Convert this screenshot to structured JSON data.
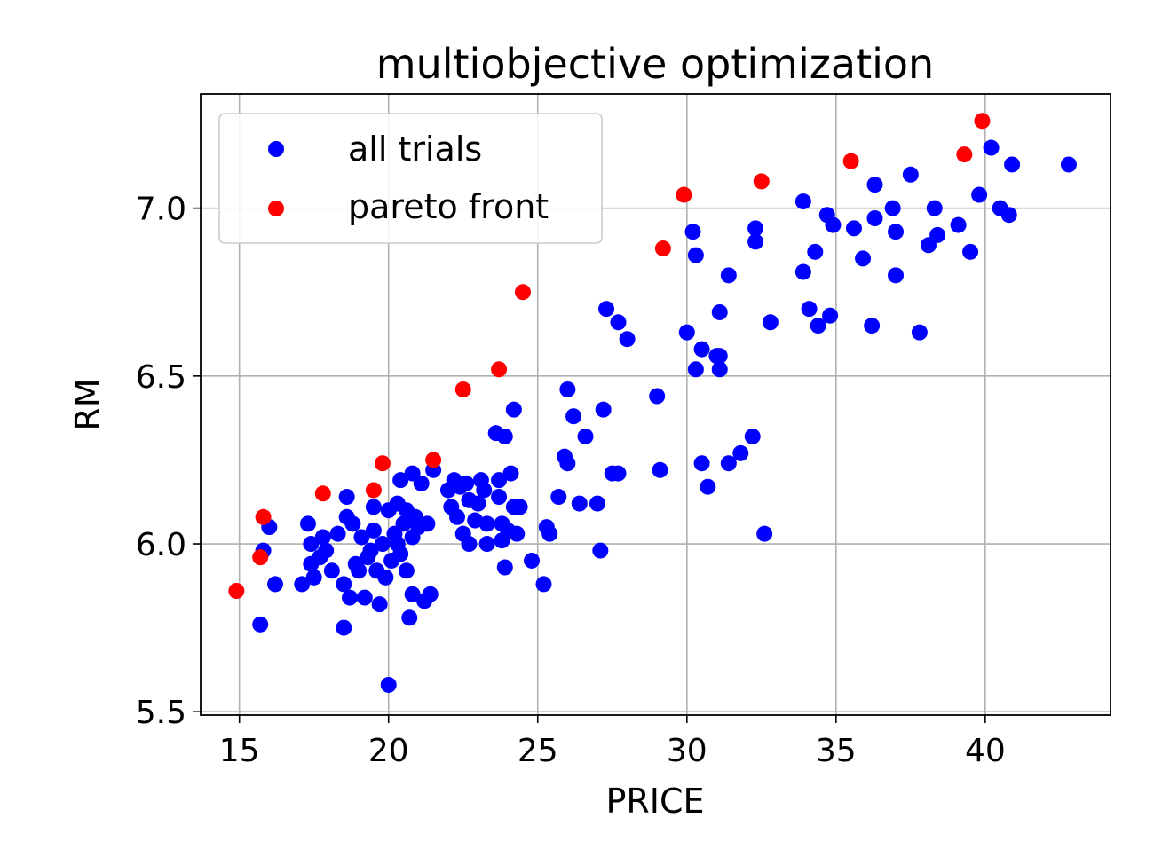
{
  "chart_data": {
    "type": "scatter",
    "title": "multiobjective optimization",
    "xlabel": "PRICE",
    "ylabel": "RM",
    "xlim": [
      13.7,
      44.2
    ],
    "ylim": [
      5.49,
      7.34
    ],
    "xticks": [
      15,
      20,
      25,
      30,
      35,
      40
    ],
    "yticks": [
      5.5,
      6.0,
      6.5,
      7.0
    ],
    "xtick_labels": [
      "15",
      "20",
      "25",
      "30",
      "35",
      "40"
    ],
    "ytick_labels": [
      "5.5",
      "6.0",
      "6.5",
      "7.0"
    ],
    "grid": true,
    "legend": {
      "placement": "top-left"
    },
    "series": [
      {
        "name": "all trials",
        "color": "#0000ff",
        "points": [
          [
            15.7,
            5.76
          ],
          [
            16.0,
            6.05
          ],
          [
            16.2,
            5.88
          ],
          [
            15.8,
            5.98
          ],
          [
            17.1,
            5.88
          ],
          [
            17.3,
            6.06
          ],
          [
            17.4,
            6.0
          ],
          [
            17.4,
            5.94
          ],
          [
            17.5,
            5.9
          ],
          [
            17.7,
            5.96
          ],
          [
            17.8,
            6.02
          ],
          [
            17.9,
            5.98
          ],
          [
            18.1,
            5.92
          ],
          [
            18.3,
            6.03
          ],
          [
            18.5,
            5.88
          ],
          [
            18.5,
            5.75
          ],
          [
            18.6,
            6.14
          ],
          [
            18.6,
            6.08
          ],
          [
            18.7,
            5.84
          ],
          [
            18.8,
            6.06
          ],
          [
            18.9,
            5.94
          ],
          [
            19.0,
            5.92
          ],
          [
            19.1,
            6.02
          ],
          [
            19.2,
            5.84
          ],
          [
            19.3,
            5.96
          ],
          [
            19.4,
            5.98
          ],
          [
            19.5,
            6.04
          ],
          [
            19.5,
            6.11
          ],
          [
            19.6,
            5.92
          ],
          [
            19.7,
            5.82
          ],
          [
            19.8,
            6.0
          ],
          [
            19.9,
            5.9
          ],
          [
            20.0,
            6.1
          ],
          [
            20.0,
            5.58
          ],
          [
            20.1,
            5.95
          ],
          [
            20.2,
            6.03
          ],
          [
            20.3,
            6.0
          ],
          [
            20.3,
            6.12
          ],
          [
            20.4,
            6.19
          ],
          [
            20.4,
            5.97
          ],
          [
            20.5,
            6.06
          ],
          [
            20.6,
            6.1
          ],
          [
            20.6,
            5.92
          ],
          [
            20.7,
            5.78
          ],
          [
            20.8,
            6.02
          ],
          [
            20.8,
            6.21
          ],
          [
            20.8,
            5.85
          ],
          [
            20.9,
            6.08
          ],
          [
            21.0,
            6.05
          ],
          [
            21.1,
            6.18
          ],
          [
            21.2,
            5.83
          ],
          [
            21.3,
            6.06
          ],
          [
            21.4,
            5.85
          ],
          [
            21.5,
            6.22
          ],
          [
            22.0,
            6.16
          ],
          [
            22.1,
            6.11
          ],
          [
            22.2,
            6.19
          ],
          [
            22.3,
            6.08
          ],
          [
            22.4,
            6.17
          ],
          [
            22.5,
            6.03
          ],
          [
            22.6,
            6.18
          ],
          [
            22.7,
            6.13
          ],
          [
            22.7,
            6.0
          ],
          [
            22.9,
            6.07
          ],
          [
            23.0,
            6.12
          ],
          [
            23.1,
            6.19
          ],
          [
            23.2,
            6.16
          ],
          [
            23.3,
            6.06
          ],
          [
            23.3,
            6.0
          ],
          [
            23.6,
            6.33
          ],
          [
            23.7,
            6.19
          ],
          [
            23.7,
            6.14
          ],
          [
            23.8,
            6.01
          ],
          [
            23.8,
            6.06
          ],
          [
            23.9,
            6.32
          ],
          [
            23.9,
            5.93
          ],
          [
            24.0,
            6.04
          ],
          [
            24.1,
            6.21
          ],
          [
            24.2,
            6.4
          ],
          [
            24.2,
            6.11
          ],
          [
            24.3,
            6.03
          ],
          [
            24.4,
            6.11
          ],
          [
            24.8,
            5.95
          ],
          [
            25.2,
            5.88
          ],
          [
            25.3,
            6.05
          ],
          [
            25.4,
            6.03
          ],
          [
            25.7,
            6.14
          ],
          [
            25.9,
            6.26
          ],
          [
            26.0,
            6.46
          ],
          [
            26.0,
            6.24
          ],
          [
            26.2,
            6.38
          ],
          [
            26.4,
            6.12
          ],
          [
            26.6,
            6.32
          ],
          [
            27.0,
            6.12
          ],
          [
            27.1,
            5.98
          ],
          [
            27.2,
            6.4
          ],
          [
            27.3,
            6.7
          ],
          [
            27.5,
            6.21
          ],
          [
            27.7,
            6.21
          ],
          [
            27.7,
            6.66
          ],
          [
            28.0,
            6.61
          ],
          [
            29.0,
            6.44
          ],
          [
            29.1,
            6.22
          ],
          [
            30.0,
            6.63
          ],
          [
            30.2,
            6.93
          ],
          [
            30.3,
            6.86
          ],
          [
            30.3,
            6.52
          ],
          [
            30.5,
            6.58
          ],
          [
            30.5,
            6.24
          ],
          [
            30.7,
            6.17
          ],
          [
            31.0,
            6.56
          ],
          [
            31.1,
            6.52
          ],
          [
            31.1,
            6.69
          ],
          [
            31.1,
            6.56
          ],
          [
            31.4,
            6.8
          ],
          [
            31.4,
            6.24
          ],
          [
            31.8,
            6.27
          ],
          [
            32.2,
            6.32
          ],
          [
            32.3,
            6.94
          ],
          [
            32.3,
            6.9
          ],
          [
            32.6,
            6.03
          ],
          [
            32.8,
            6.66
          ],
          [
            33.9,
            7.02
          ],
          [
            33.9,
            6.81
          ],
          [
            34.1,
            6.7
          ],
          [
            34.3,
            6.87
          ],
          [
            34.4,
            6.65
          ],
          [
            34.7,
            6.98
          ],
          [
            34.8,
            6.68
          ],
          [
            34.9,
            6.95
          ],
          [
            35.6,
            6.94
          ],
          [
            35.9,
            6.85
          ],
          [
            36.2,
            6.65
          ],
          [
            36.3,
            6.97
          ],
          [
            36.3,
            7.07
          ],
          [
            36.9,
            7.0
          ],
          [
            37.0,
            6.93
          ],
          [
            37.0,
            6.8
          ],
          [
            37.5,
            7.1
          ],
          [
            37.8,
            6.63
          ],
          [
            38.1,
            6.89
          ],
          [
            38.3,
            7.0
          ],
          [
            38.4,
            6.92
          ],
          [
            39.1,
            6.95
          ],
          [
            39.5,
            6.87
          ],
          [
            39.8,
            7.04
          ],
          [
            40.2,
            7.18
          ],
          [
            40.5,
            7.0
          ],
          [
            40.8,
            6.98
          ],
          [
            40.9,
            7.13
          ],
          [
            42.8,
            7.13
          ]
        ]
      },
      {
        "name": "pareto front",
        "color": "#ff0000",
        "points": [
          [
            14.9,
            5.86
          ],
          [
            15.7,
            5.96
          ],
          [
            15.8,
            6.08
          ],
          [
            17.8,
            6.15
          ],
          [
            19.5,
            6.16
          ],
          [
            19.8,
            6.24
          ],
          [
            21.5,
            6.25
          ],
          [
            22.5,
            6.46
          ],
          [
            23.7,
            6.52
          ],
          [
            24.5,
            6.75
          ],
          [
            29.2,
            6.88
          ],
          [
            29.9,
            7.04
          ],
          [
            32.5,
            7.08
          ],
          [
            35.5,
            7.14
          ],
          [
            39.3,
            7.16
          ],
          [
            39.9,
            7.26
          ]
        ]
      }
    ]
  }
}
